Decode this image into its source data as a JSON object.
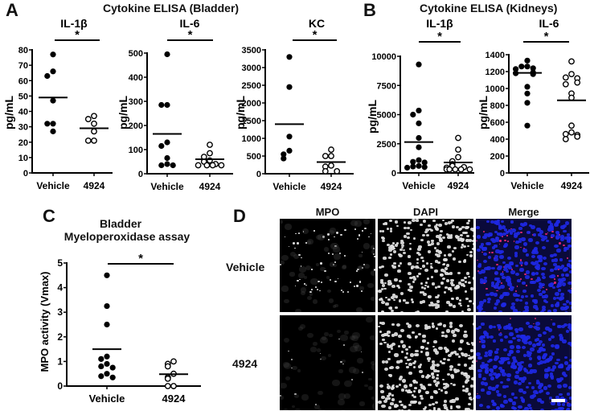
{
  "panels": {
    "A": {
      "letter": "A",
      "title": "Cytokine ELISA (Bladder)"
    },
    "B": {
      "letter": "B",
      "title": "Cytokine ELISA (Kidneys)"
    },
    "C": {
      "letter": "C",
      "title_line1": "Bladder",
      "title_line2": "Myeloperoxidase assay"
    },
    "D": {
      "letter": "D",
      "columns": [
        "MPO",
        "DAPI",
        "Merge"
      ],
      "rows": [
        "Vehicle",
        "4924"
      ]
    }
  },
  "chart_data": [
    {
      "id": "A1",
      "type": "scatter",
      "panel": "A",
      "title": "IL-1β",
      "ylabel": "pg/mL",
      "categories": [
        "Vehicle",
        "4924"
      ],
      "ylim": [
        0,
        80
      ],
      "yticks": [
        0,
        10,
        20,
        30,
        40,
        50,
        60,
        70,
        80
      ],
      "significance": "*",
      "series": [
        {
          "name": "Vehicle",
          "marker": "filled",
          "values": [
            77,
            66,
            63,
            47,
            32,
            32,
            27
          ],
          "mean": 49
        },
        {
          "name": "4924",
          "marker": "open",
          "values": [
            37,
            35,
            32,
            27,
            21,
            21
          ],
          "mean": 29
        }
      ]
    },
    {
      "id": "A2",
      "type": "scatter",
      "panel": "A",
      "title": "IL-6",
      "ylabel": "pg/mL",
      "categories": [
        "Vehicle",
        "4924"
      ],
      "ylim": [
        0,
        500
      ],
      "yticks": [
        0,
        100,
        200,
        300,
        400,
        500
      ],
      "significance": "*",
      "series": [
        {
          "name": "Vehicle",
          "marker": "filled",
          "values": [
            495,
            285,
            285,
            130,
            115,
            65,
            40,
            35,
            35
          ],
          "mean": 165
        },
        {
          "name": "4924",
          "marker": "open",
          "values": [
            120,
            85,
            70,
            55,
            50,
            40,
            35,
            35,
            35,
            35
          ],
          "mean": 60
        }
      ]
    },
    {
      "id": "A3",
      "type": "scatter",
      "panel": "A",
      "title": "KC",
      "ylabel": "pg/mL",
      "categories": [
        "Vehicle",
        "4924"
      ],
      "ylim": [
        0,
        3500
      ],
      "yticks": [
        0,
        500,
        1000,
        1500,
        2000,
        2500,
        3000,
        3500
      ],
      "significance": "*",
      "series": [
        {
          "name": "Vehicle",
          "marker": "filled",
          "values": [
            3300,
            2450,
            1050,
            650,
            550,
            430
          ],
          "mean": 1400
        },
        {
          "name": "4924",
          "marker": "open",
          "values": [
            680,
            500,
            500,
            230,
            200,
            70,
            70
          ],
          "mean": 330
        }
      ]
    },
    {
      "id": "B1",
      "type": "scatter",
      "panel": "B",
      "title": "IL-1β",
      "ylabel": "pg/mL",
      "categories": [
        "Vehicle",
        "4924"
      ],
      "ylim": [
        0,
        10000
      ],
      "yticks": [
        0,
        2500,
        5000,
        7500,
        10000
      ],
      "significance": "*",
      "series": [
        {
          "name": "Vehicle",
          "marker": "filled",
          "values": [
            9300,
            5350,
            5000,
            4250,
            3000,
            2200,
            1100,
            950,
            900,
            600,
            550,
            500,
            450
          ],
          "mean": 2650
        },
        {
          "name": "4924",
          "marker": "open",
          "values": [
            3000,
            2000,
            1350,
            1000,
            750,
            600,
            500,
            450,
            300,
            300,
            300,
            300,
            300
          ],
          "mean": 900
        }
      ]
    },
    {
      "id": "B2",
      "type": "scatter",
      "panel": "B",
      "title": "IL-6",
      "ylabel": "pg/mL",
      "categories": [
        "Vehicle",
        "4924"
      ],
      "ylim": [
        0,
        1400
      ],
      "yticks": [
        0,
        200,
        400,
        600,
        800,
        1000,
        1200,
        1400
      ],
      "significance": "*",
      "series": [
        {
          "name": "Vehicle",
          "marker": "filled",
          "values": [
            1330,
            1260,
            1260,
            1240,
            1230,
            1190,
            1180,
            1170,
            1020,
            940,
            830,
            560
          ],
          "mean": 1185
        },
        {
          "name": "4924",
          "marker": "open",
          "values": [
            1320,
            1170,
            1130,
            1120,
            1070,
            1050,
            940,
            890,
            560,
            480,
            460,
            450,
            430,
            400
          ],
          "mean": 860
        }
      ]
    },
    {
      "id": "C",
      "type": "scatter",
      "panel": "C",
      "title": "Bladder Myeloperoxidase assay",
      "ylabel": "MPO activity (Vmax)",
      "categories": [
        "Vehicle",
        "4924"
      ],
      "ylim": [
        0,
        5
      ],
      "yticks": [
        0,
        1,
        2,
        3,
        4,
        5
      ],
      "significance": "*",
      "series": [
        {
          "name": "Vehicle",
          "marker": "filled",
          "values": [
            4.5,
            3.25,
            2.5,
            1.2,
            1.1,
            0.9,
            0.8,
            0.75,
            0.5,
            0.4,
            0.35
          ],
          "mean": 1.5
        },
        {
          "name": "4924",
          "marker": "open",
          "values": [
            1.0,
            0.9,
            0.8,
            0.5,
            0.35,
            0.3,
            0.0,
            0.0
          ],
          "mean": 0.48
        }
      ]
    }
  ]
}
